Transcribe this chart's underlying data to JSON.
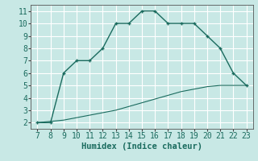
{
  "title": "",
  "xlabel": "Humidex (Indice chaleur)",
  "ylabel": "",
  "background_color": "#c8e8e5",
  "grid_color": "#ffffff",
  "line_color": "#1a6b5e",
  "line1_x": [
    7,
    8,
    9,
    10,
    11,
    12,
    13,
    14,
    15,
    16,
    17,
    18,
    19,
    20,
    21,
    22,
    23
  ],
  "line1_y": [
    2,
    2,
    6,
    7,
    7,
    8,
    10,
    10,
    11,
    11,
    10,
    10,
    10,
    9,
    8,
    6,
    5
  ],
  "line2_x": [
    7,
    8,
    9,
    10,
    11,
    12,
    13,
    14,
    15,
    16,
    17,
    18,
    19,
    20,
    21,
    22,
    23
  ],
  "line2_y": [
    2.0,
    2.1,
    2.2,
    2.4,
    2.6,
    2.8,
    3.0,
    3.3,
    3.6,
    3.9,
    4.2,
    4.5,
    4.7,
    4.9,
    5.0,
    5.0,
    5.0
  ],
  "xlim_min": 6.5,
  "xlim_max": 23.5,
  "ylim_min": 1.5,
  "ylim_max": 11.5,
  "xticks": [
    7,
    8,
    9,
    10,
    11,
    12,
    13,
    14,
    15,
    16,
    17,
    18,
    19,
    20,
    21,
    22,
    23
  ],
  "yticks": [
    2,
    3,
    4,
    5,
    6,
    7,
    8,
    9,
    10,
    11
  ],
  "fontsize_label": 7.5,
  "fontsize_tick": 7,
  "marker": "+"
}
